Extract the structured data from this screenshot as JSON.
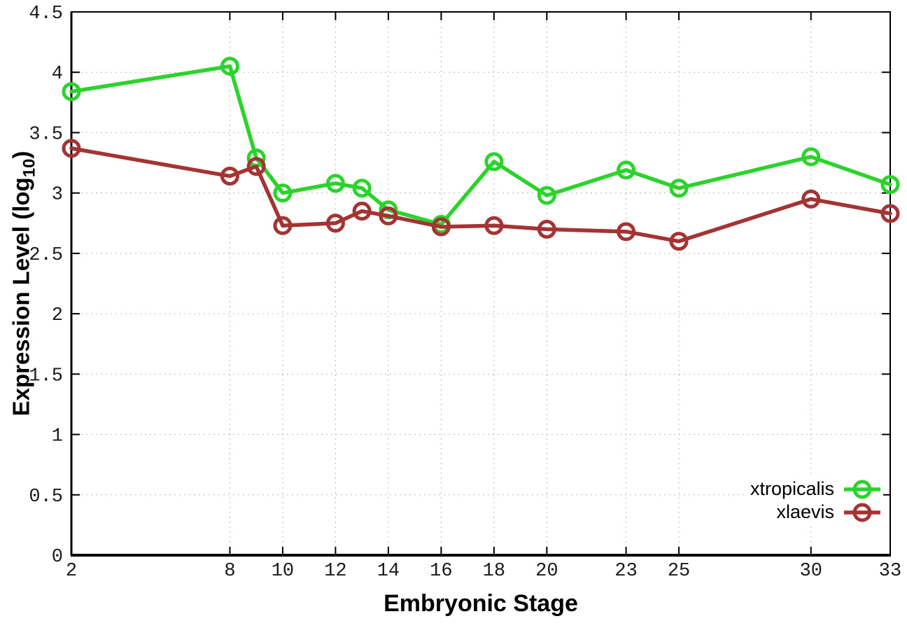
{
  "figure": {
    "background": "#ffffff",
    "ylabel_parts": {
      "prefix": "Expression Level (log",
      "sub": "10",
      "suffix": ")"
    }
  },
  "chart_data": {
    "type": "line",
    "title": "",
    "xlabel": "Embryonic Stage",
    "ylabel": "Expression Level (log10)",
    "xlim": [
      2,
      33
    ],
    "ylim": [
      0,
      4.5
    ],
    "grid": true,
    "grid_style": "dotted",
    "legend_position": "inside-bottom-right",
    "x_ticks": [
      2,
      8,
      10,
      12,
      14,
      16,
      18,
      20,
      23,
      25,
      30,
      33
    ],
    "y_ticks": [
      0,
      0.5,
      1,
      1.5,
      2,
      2.5,
      3,
      3.5,
      4,
      4.5
    ],
    "x": [
      2,
      8,
      9,
      10,
      12,
      13,
      14,
      16,
      18,
      20,
      23,
      25,
      30,
      33
    ],
    "series": [
      {
        "name": "xtropicalis",
        "color": "#2cd32c",
        "marker": "open-circle",
        "values": [
          3.84,
          4.05,
          3.29,
          3.0,
          3.08,
          3.04,
          2.86,
          2.74,
          3.26,
          2.98,
          3.19,
          3.04,
          3.3,
          3.07
        ]
      },
      {
        "name": "xlaevis",
        "color": "#a43333",
        "marker": "open-circle",
        "values": [
          3.37,
          3.14,
          3.22,
          2.73,
          2.75,
          2.85,
          2.81,
          2.72,
          2.73,
          2.7,
          2.68,
          2.6,
          2.95,
          2.83
        ]
      }
    ]
  }
}
